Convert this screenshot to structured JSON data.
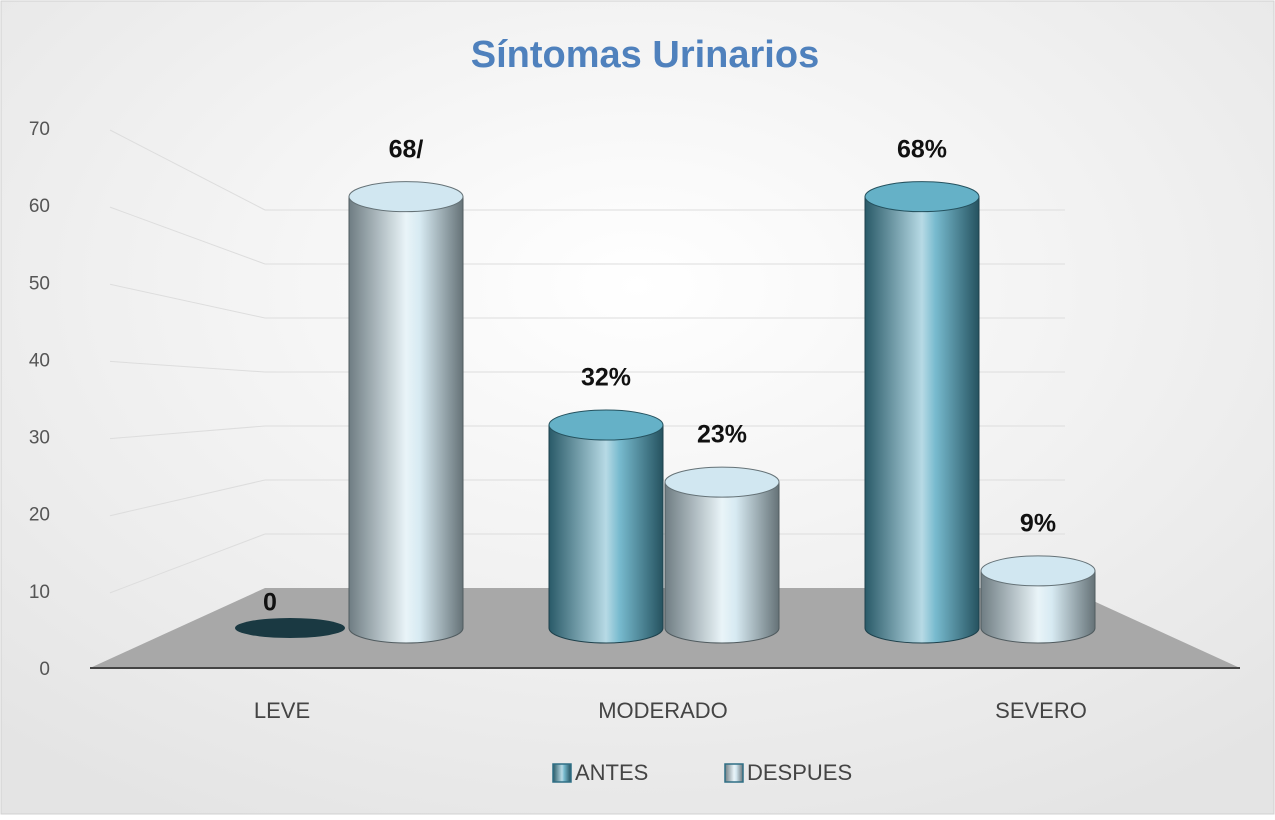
{
  "chart_data": {
    "type": "bar3d",
    "title": "Síntomas Urinarios",
    "categories": [
      "LEVE",
      "MODERADO",
      "SEVERO"
    ],
    "series": [
      {
        "name": "ANTES",
        "color": "#4aa3bd",
        "values": [
          0,
          32,
          68
        ],
        "value_labels": [
          "0",
          "32%",
          "68%"
        ]
      },
      {
        "name": "DESPUES",
        "color": "#c9e3ee",
        "values": [
          68,
          23,
          9
        ],
        "value_labels": [
          "68/",
          "23%",
          "9%"
        ]
      }
    ],
    "ylim": [
      0,
      70
    ],
    "yticks": [
      0,
      10,
      20,
      30,
      40,
      50,
      60,
      70
    ],
    "grid": true,
    "legend": "bottom"
  }
}
